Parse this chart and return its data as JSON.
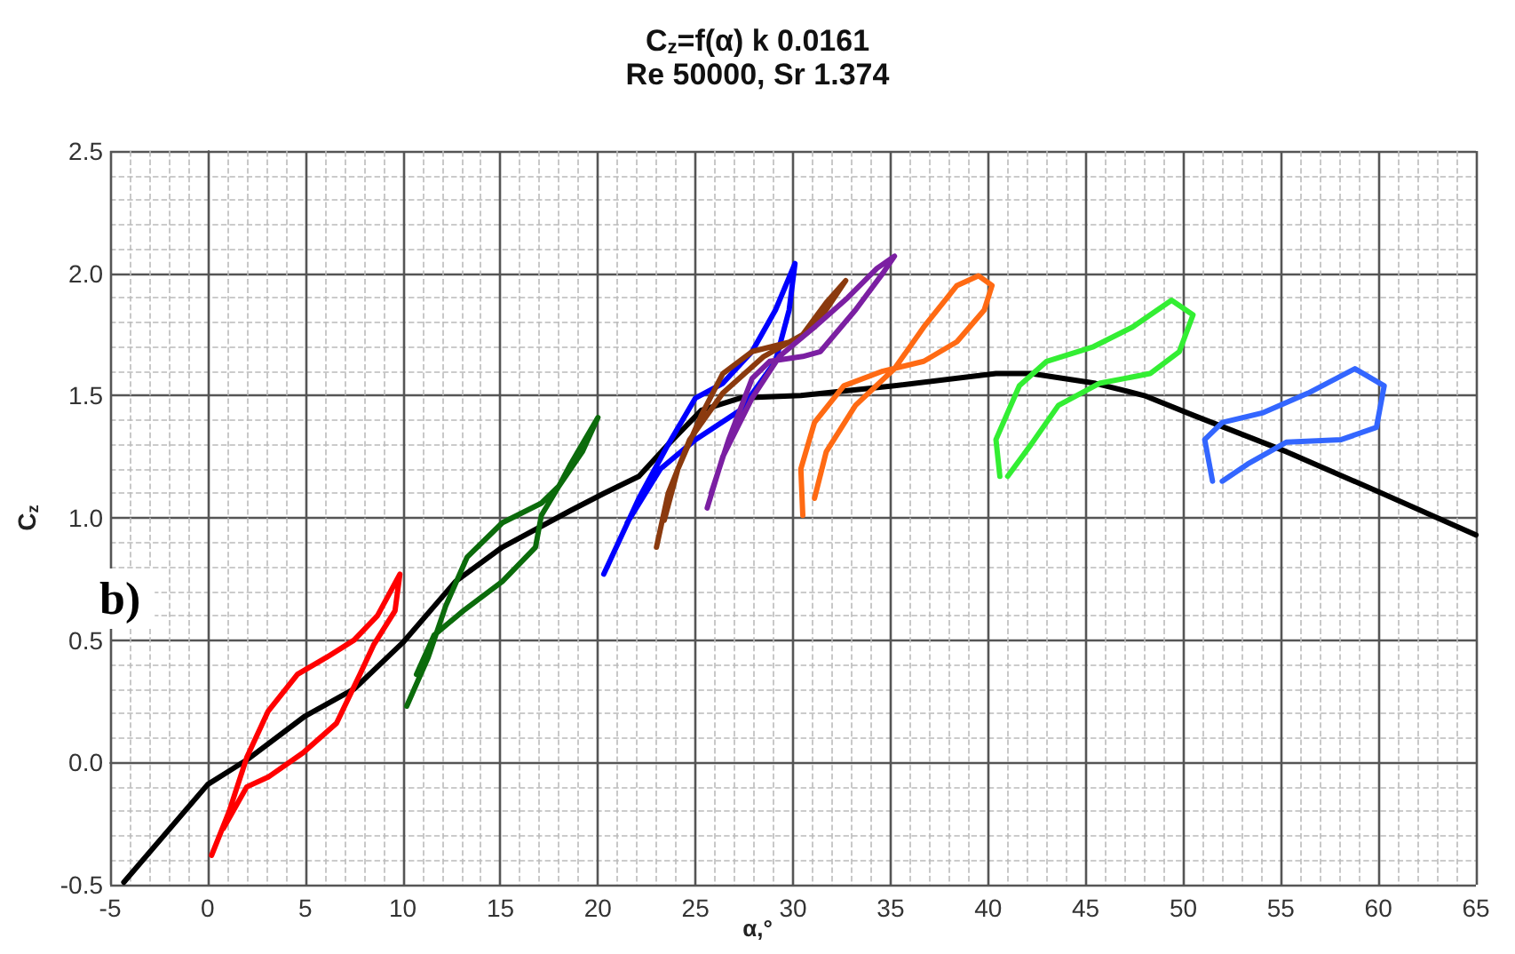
{
  "chart_data": {
    "type": "line",
    "title": "C$_{z}$=f(α) k 0.0161",
    "subtitle": "Re 50000, Sr 1.374",
    "xlabel": "α,°",
    "ylabel": "C$_{z}$",
    "annotations": [
      "b)"
    ],
    "xlim": [
      -5,
      65
    ],
    "xticks": [
      -5,
      0,
      5,
      10,
      15,
      20,
      25,
      30,
      35,
      40,
      45,
      50,
      55,
      60,
      65
    ],
    "ylim": [
      -0.5,
      2.5
    ],
    "yticks": [
      -0.5,
      {
        "value": 0,
        "label": "0.0"
      },
      0.5,
      {
        "value": 1,
        "label": "1.0"
      },
      1.5,
      {
        "value": 2,
        "label": "2.0"
      },
      2.5
    ],
    "grid": true,
    "marker": "none",
    "line_style": "solid",
    "series": [
      {
        "color": "#000000",
        "x": [
          -4.3,
          0,
          2,
          5,
          7.5,
          10,
          12.7,
          15.1,
          18.6,
          20.3,
          22.1,
          23.6,
          25.3,
          27.3,
          30.4,
          35.2,
          40.4,
          42.2,
          45.5,
          48,
          50.5,
          55.3,
          60.2,
          65
        ],
        "values": [
          -0.49,
          -0.09,
          0.01,
          0.19,
          0.3,
          0.49,
          0.74,
          0.88,
          1.03,
          1.1,
          1.17,
          1.3,
          1.44,
          1.49,
          1.5,
          1.54,
          1.59,
          1.59,
          1.55,
          1.5,
          1.42,
          1.27,
          1.1,
          0.93
        ]
      },
      {
        "color": "#ff0000",
        "x": [
          0.2,
          1.1,
          2,
          3.1,
          4.6,
          6.1,
          7.5,
          8.7,
          9.85,
          9.6,
          8.5,
          7.8,
          6.6,
          4.9,
          3.1,
          2,
          0.8
        ],
        "values": [
          -0.38,
          -0.2,
          0.02,
          0.21,
          0.36,
          0.43,
          0.5,
          0.6,
          0.77,
          0.62,
          0.48,
          0.36,
          0.16,
          0.04,
          -0.06,
          -0.1,
          -0.27
        ]
      },
      {
        "color": "#0b6b0b",
        "x": [
          10.2,
          11.3,
          12.2,
          13.3,
          15.1,
          17.1,
          18,
          18.6,
          20,
          19.2,
          18,
          17.1,
          16.8,
          15.1,
          13.1,
          11.6,
          10.7
        ],
        "values": [
          0.23,
          0.43,
          0.64,
          0.84,
          0.98,
          1.06,
          1.13,
          1.22,
          1.41,
          1.27,
          1.13,
          1.01,
          0.88,
          0.74,
          0.62,
          0.52,
          0.36
        ]
      },
      {
        "color": "#0000ff",
        "x": [
          20.3,
          22.1,
          23.6,
          25,
          26.4,
          27.9,
          29.1,
          30.1,
          29.8,
          29.1,
          27.3,
          25,
          23.2,
          21.5
        ],
        "values": [
          0.77,
          1.08,
          1.3,
          1.49,
          1.55,
          1.68,
          1.85,
          2.04,
          1.85,
          1.64,
          1.44,
          1.32,
          1.2,
          0.98
        ]
      },
      {
        "color": "#8b3a0e",
        "x": [
          23,
          23.6,
          24.7,
          26.4,
          28.5,
          30.5,
          31.7,
          32.7,
          31.1,
          29.9,
          27.9,
          26.4,
          25.3,
          24.1,
          23.4
        ],
        "values": [
          0.88,
          1.1,
          1.32,
          1.51,
          1.66,
          1.75,
          1.88,
          1.97,
          1.78,
          1.72,
          1.68,
          1.59,
          1.42,
          1.2,
          0.99
        ]
      },
      {
        "color": "#7b1fa2",
        "x": [
          25.6,
          26.4,
          27.9,
          29.3,
          31.1,
          32.8,
          34.3,
          35.2,
          34.6,
          33.2,
          31.4,
          30.5,
          28.8,
          27.9,
          26.7,
          25.8
        ],
        "values": [
          1.04,
          1.25,
          1.49,
          1.66,
          1.78,
          1.9,
          2.02,
          2.07,
          2,
          1.85,
          1.68,
          1.66,
          1.64,
          1.57,
          1.32,
          1.1
        ]
      },
      {
        "color": "#ff6a13",
        "x": [
          30.5,
          30.4,
          31.1,
          32.6,
          34.6,
          36.7,
          38.4,
          39.8,
          40.2,
          39.5,
          38.4,
          36.7,
          35.2,
          33.2,
          31.7,
          31.1
        ],
        "values": [
          1.01,
          1.2,
          1.39,
          1.54,
          1.6,
          1.64,
          1.72,
          1.85,
          1.95,
          1.99,
          1.95,
          1.78,
          1.61,
          1.46,
          1.27,
          1.08
        ]
      },
      {
        "color": "#33ee33",
        "x": [
          40.6,
          40.4,
          41.6,
          43,
          45.4,
          47.4,
          49.4,
          50.5,
          49.8,
          48.3,
          45.7,
          43.6,
          42.2,
          41
        ],
        "values": [
          1.17,
          1.32,
          1.54,
          1.64,
          1.7,
          1.78,
          1.89,
          1.83,
          1.68,
          1.59,
          1.55,
          1.46,
          1.3,
          1.17
        ]
      },
      {
        "color": "#3366ff",
        "x": [
          51.5,
          51.1,
          52,
          54.1,
          56.4,
          58.8,
          60.3,
          59.9,
          58.1,
          55.3,
          53.3,
          52
        ],
        "values": [
          1.15,
          1.32,
          1.39,
          1.43,
          1.51,
          1.61,
          1.54,
          1.37,
          1.32,
          1.31,
          1.22,
          1.15
        ]
      }
    ]
  }
}
